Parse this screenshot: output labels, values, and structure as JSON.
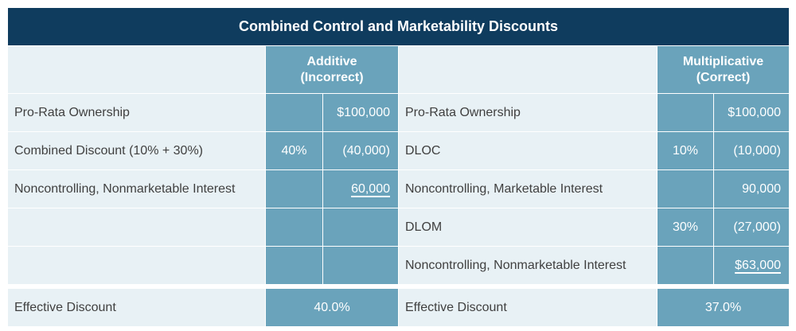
{
  "title": "Combined Control and Marketability Discounts",
  "additive": {
    "header_line1": "Additive",
    "header_line2": "(Incorrect)",
    "rows": [
      {
        "label": "Pro-Rata Ownership",
        "pct": "",
        "amount": "$100,000",
        "underline": false
      },
      {
        "label": "Combined Discount (10% + 30%)",
        "pct": "40%",
        "amount": "(40,000)",
        "underline": false
      },
      {
        "label": "Noncontrolling, Nonmarketable Interest",
        "pct": "",
        "amount": "60,000",
        "underline": true
      },
      {
        "label": "",
        "pct": "",
        "amount": "",
        "underline": false
      },
      {
        "label": "",
        "pct": "",
        "amount": "",
        "underline": false
      }
    ],
    "effective_label": "Effective Discount",
    "effective_value": "40.0%"
  },
  "multiplicative": {
    "header_line1": "Multiplicative",
    "header_line2": "(Correct)",
    "rows": [
      {
        "label": "Pro-Rata Ownership",
        "pct": "",
        "amount": "$100,000",
        "underline": false
      },
      {
        "label": "DLOC",
        "pct": "10%",
        "amount": "(10,000)",
        "underline": false
      },
      {
        "label": "Noncontrolling, Marketable Interest",
        "pct": "",
        "amount": "90,000",
        "underline": false
      },
      {
        "label": "DLOM",
        "pct": "30%",
        "amount": "(27,000)",
        "underline": false
      },
      {
        "label": "Noncontrolling, Nonmarketable Interest",
        "pct": "",
        "amount": "$63,000",
        "underline": true
      }
    ],
    "effective_label": "Effective Discount",
    "effective_value": "37.0%"
  },
  "colors": {
    "title_bg": "#0f3c5e",
    "cell_light": "#e8f1f5",
    "cell_blue": "#6aa3bb"
  }
}
